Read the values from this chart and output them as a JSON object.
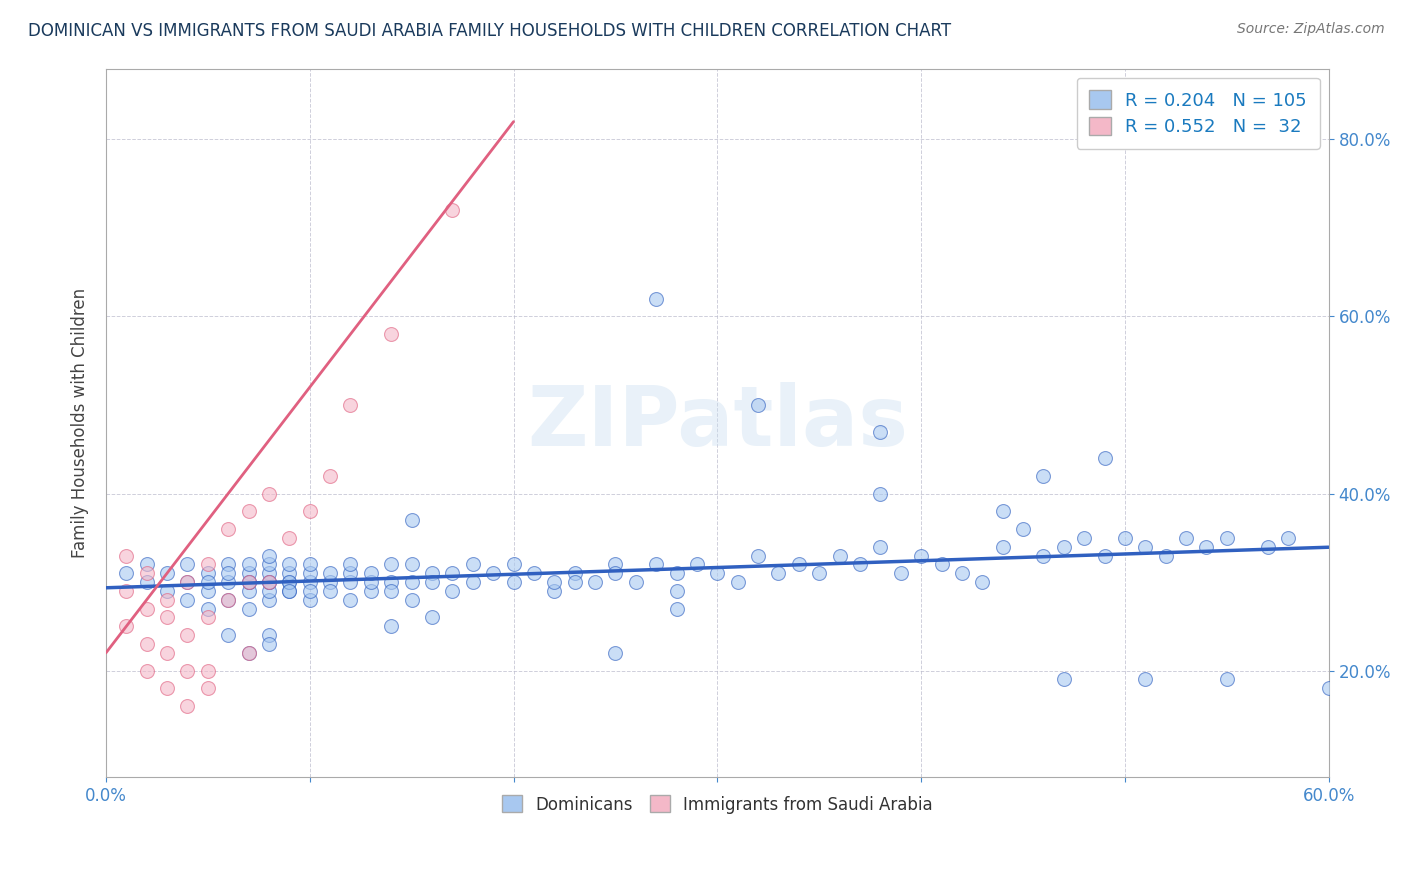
{
  "title": "DOMINICAN VS IMMIGRANTS FROM SAUDI ARABIA FAMILY HOUSEHOLDS WITH CHILDREN CORRELATION CHART",
  "source": "Source: ZipAtlas.com",
  "ylabel": "Family Households with Children",
  "xlim": [
    0.0,
    0.6
  ],
  "ylim": [
    0.08,
    0.88
  ],
  "yticks": [
    0.2,
    0.4,
    0.6,
    0.8
  ],
  "blue_R": 0.204,
  "blue_N": 105,
  "pink_R": 0.552,
  "pink_N": 32,
  "blue_color": "#a8c8f0",
  "pink_color": "#f4b8c8",
  "blue_line_color": "#3060c0",
  "pink_line_color": "#e06080",
  "watermark_text": "ZIPatlas",
  "dominicans_x": [
    0.01,
    0.02,
    0.02,
    0.03,
    0.03,
    0.04,
    0.04,
    0.04,
    0.05,
    0.05,
    0.05,
    0.05,
    0.06,
    0.06,
    0.06,
    0.06,
    0.07,
    0.07,
    0.07,
    0.07,
    0.07,
    0.07,
    0.08,
    0.08,
    0.08,
    0.08,
    0.08,
    0.08,
    0.08,
    0.09,
    0.09,
    0.09,
    0.09,
    0.09,
    0.09,
    0.1,
    0.1,
    0.1,
    0.1,
    0.1,
    0.11,
    0.11,
    0.11,
    0.12,
    0.12,
    0.12,
    0.12,
    0.13,
    0.13,
    0.13,
    0.14,
    0.14,
    0.14,
    0.15,
    0.15,
    0.15,
    0.16,
    0.16,
    0.17,
    0.17,
    0.18,
    0.18,
    0.19,
    0.2,
    0.2,
    0.21,
    0.22,
    0.22,
    0.23,
    0.24,
    0.25,
    0.25,
    0.26,
    0.27,
    0.28,
    0.28,
    0.29,
    0.3,
    0.31,
    0.32,
    0.33,
    0.34,
    0.35,
    0.36,
    0.37,
    0.38,
    0.39,
    0.4,
    0.41,
    0.42,
    0.43,
    0.44,
    0.45,
    0.46,
    0.47,
    0.48,
    0.49,
    0.5,
    0.51,
    0.52,
    0.53,
    0.54,
    0.55,
    0.57,
    0.58
  ],
  "dominicans_y": [
    0.31,
    0.3,
    0.32,
    0.29,
    0.31,
    0.28,
    0.3,
    0.32,
    0.27,
    0.29,
    0.31,
    0.3,
    0.28,
    0.3,
    0.32,
    0.31,
    0.27,
    0.29,
    0.3,
    0.31,
    0.32,
    0.3,
    0.28,
    0.29,
    0.3,
    0.31,
    0.32,
    0.3,
    0.33,
    0.29,
    0.3,
    0.31,
    0.32,
    0.3,
    0.29,
    0.28,
    0.3,
    0.31,
    0.29,
    0.32,
    0.3,
    0.31,
    0.29,
    0.28,
    0.3,
    0.31,
    0.32,
    0.29,
    0.3,
    0.31,
    0.3,
    0.29,
    0.32,
    0.28,
    0.3,
    0.32,
    0.31,
    0.3,
    0.29,
    0.31,
    0.32,
    0.3,
    0.31,
    0.3,
    0.32,
    0.31,
    0.29,
    0.3,
    0.31,
    0.3,
    0.32,
    0.31,
    0.3,
    0.32,
    0.31,
    0.29,
    0.32,
    0.31,
    0.3,
    0.33,
    0.31,
    0.32,
    0.31,
    0.33,
    0.32,
    0.34,
    0.31,
    0.33,
    0.32,
    0.31,
    0.3,
    0.34,
    0.36,
    0.33,
    0.34,
    0.35,
    0.33,
    0.35,
    0.34,
    0.33,
    0.35,
    0.34,
    0.35,
    0.34,
    0.35
  ],
  "dominicans_y_extra": [
    0.24,
    0.24,
    0.22,
    0.23,
    0.25,
    0.26,
    0.22,
    0.37,
    0.44,
    0.47,
    0.5,
    0.42,
    0.4,
    0.38,
    0.62,
    0.27,
    0.19,
    0.19,
    0.19,
    0.18,
    0.3
  ],
  "dominicans_x_extra": [
    0.08,
    0.06,
    0.07,
    0.08,
    0.14,
    0.16,
    0.25,
    0.15,
    0.49,
    0.38,
    0.32,
    0.46,
    0.38,
    0.44,
    0.27,
    0.28,
    0.51,
    0.55,
    0.47,
    0.6,
    0.23
  ],
  "immigrants_x": [
    0.01,
    0.01,
    0.01,
    0.02,
    0.02,
    0.02,
    0.02,
    0.03,
    0.03,
    0.03,
    0.03,
    0.04,
    0.04,
    0.04,
    0.04,
    0.05,
    0.05,
    0.05,
    0.05,
    0.06,
    0.06,
    0.07,
    0.07,
    0.07,
    0.08,
    0.08,
    0.09,
    0.1,
    0.11,
    0.12,
    0.14,
    0.17
  ],
  "immigrants_y": [
    0.29,
    0.33,
    0.25,
    0.27,
    0.31,
    0.23,
    0.2,
    0.28,
    0.22,
    0.26,
    0.18,
    0.3,
    0.24,
    0.2,
    0.16,
    0.32,
    0.26,
    0.2,
    0.18,
    0.36,
    0.28,
    0.38,
    0.3,
    0.22,
    0.4,
    0.3,
    0.35,
    0.38,
    0.42,
    0.5,
    0.58,
    0.72
  ],
  "pink_line_x": [
    0.0,
    0.2
  ],
  "pink_line_y": [
    0.22,
    0.82
  ]
}
